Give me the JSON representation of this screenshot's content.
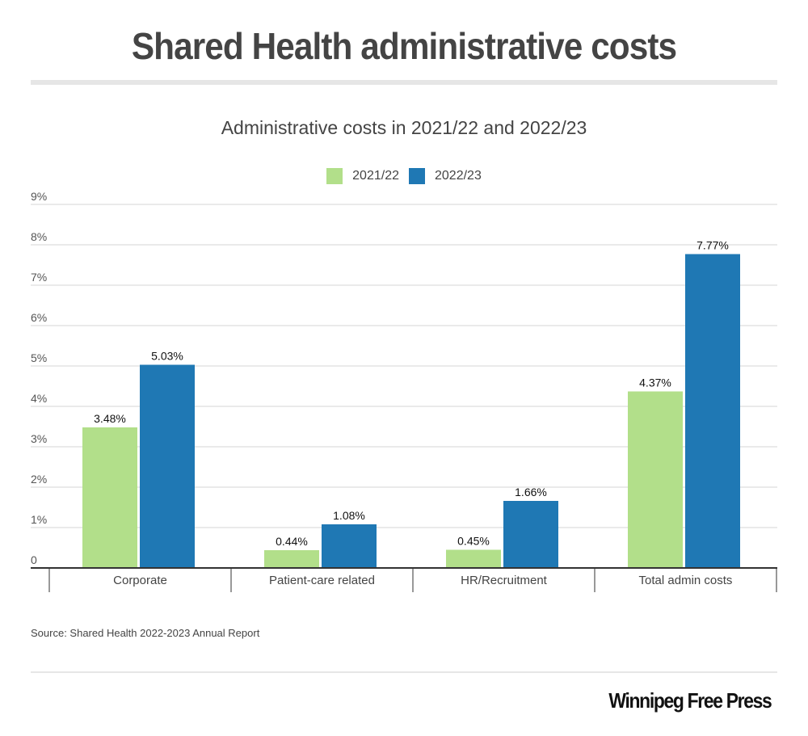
{
  "header": {
    "title": "Shared Health administrative costs"
  },
  "chart_data": {
    "type": "bar",
    "title": "Administrative costs in 2021/22 and 2022/23",
    "xlabel": "",
    "ylabel": "",
    "categories": [
      "Corporate",
      "Patient-care related",
      "HR/Recruitment",
      "Total admin costs"
    ],
    "series": [
      {
        "name": "2021/22",
        "color": "#b2df8a",
        "values": [
          3.48,
          0.44,
          0.45,
          4.37
        ],
        "labels": [
          "3.48%",
          "0.44%",
          "0.45%",
          "4.37%"
        ]
      },
      {
        "name": "2022/23",
        "color": "#1f78b4",
        "values": [
          5.03,
          1.08,
          1.66,
          7.77
        ],
        "labels": [
          "5.03%",
          "1.08%",
          "1.66%",
          "7.77%"
        ]
      }
    ],
    "ylim": [
      0,
      9
    ],
    "yticks": [
      0,
      1,
      2,
      3,
      4,
      5,
      6,
      7,
      8,
      9
    ],
    "ytick_labels": [
      "0",
      "1%",
      "2%",
      "3%",
      "4%",
      "5%",
      "6%",
      "7%",
      "8%",
      "9%"
    ],
    "grid": true,
    "legend_position": "top-center"
  },
  "footer": {
    "source": "Source: Shared Health 2022-2023 Annual Report",
    "logo": "Winnipeg Free Press"
  }
}
